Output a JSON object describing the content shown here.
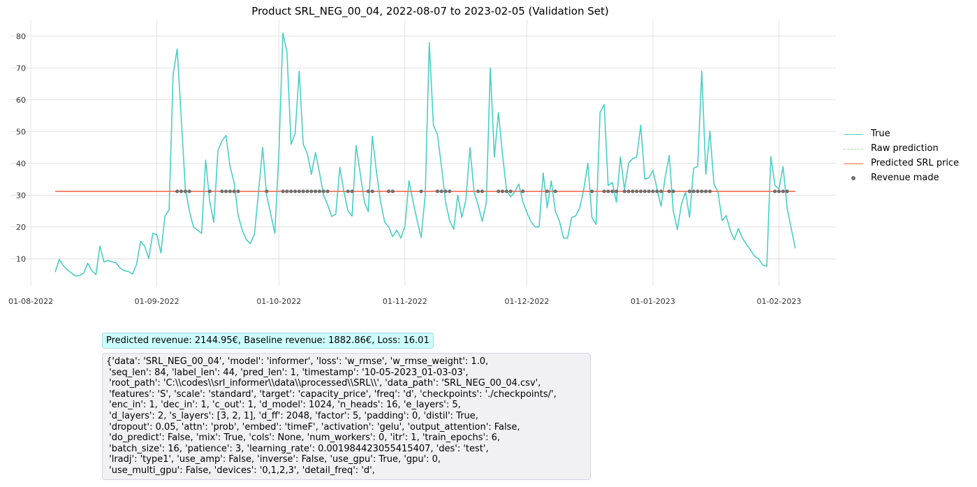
{
  "colors": {
    "true": "#48cfc4",
    "raw": "#9edc9a",
    "pred": "#f06a4f",
    "revenue": "#707070",
    "grid": "#dcdcdc"
  },
  "chart_data": {
    "type": "line",
    "title": "Product SRL_NEG_00_04, 2022-08-07 to 2023-02-05 (Validation Set)",
    "xlabel": "",
    "ylabel": "",
    "x_range": [
      "2022-07-27",
      "2023-02-15"
    ],
    "ylim": [
      1.5,
      85
    ],
    "yticks": [
      10,
      20,
      30,
      40,
      50,
      60,
      70,
      80
    ],
    "xticks": [
      {
        "date": "2022-08-01",
        "label": "01-08-2022"
      },
      {
        "date": "2022-09-01",
        "label": "01-09-2022"
      },
      {
        "date": "2022-10-01",
        "label": "01-10-2022"
      },
      {
        "date": "2022-11-01",
        "label": "01-11-2022"
      },
      {
        "date": "2022-12-01",
        "label": "01-12-2022"
      },
      {
        "date": "2023-01-01",
        "label": "01-01-2023"
      },
      {
        "date": "2023-02-01",
        "label": "01-02-2023"
      }
    ],
    "grid": true,
    "legend_position": "center-right",
    "series": [
      {
        "name": "True",
        "style": "line",
        "x_start": "2022-08-07",
        "x_step_days": 1,
        "values": [
          5.8,
          9.8,
          7.8,
          6.5,
          5.5,
          4.6,
          4.7,
          5.5,
          8.6,
          6.2,
          5,
          14,
          9,
          9.5,
          9,
          8.7,
          7,
          6.2,
          6,
          5.2,
          8.2,
          15.5,
          14,
          10,
          18,
          17.6,
          11.8,
          23.5,
          25.3,
          68,
          76,
          54,
          32,
          25,
          20,
          19,
          18,
          41,
          28,
          21.5,
          44,
          47,
          48.8,
          39,
          34,
          23.5,
          19,
          16,
          14.8,
          17.8,
          31,
          45,
          30,
          24,
          18,
          43,
          81,
          75,
          46,
          49.5,
          69,
          46,
          43,
          36.5,
          43.4,
          37,
          30,
          27,
          23.3,
          24,
          38.8,
          31,
          25,
          23.4,
          45.6,
          37,
          28,
          24.8,
          48.5,
          37.5,
          28,
          21.6,
          20,
          17,
          19,
          16.5,
          20.2,
          34.5,
          28,
          22,
          16.7,
          30,
          78,
          52,
          49,
          39,
          28,
          22,
          19.3,
          30,
          23,
          28.5,
          45,
          31,
          27,
          21.8,
          27.5,
          70,
          42,
          56,
          43,
          31.5,
          29.5,
          31,
          33.5,
          28,
          24.5,
          21.7,
          20,
          20,
          37,
          26,
          34.5,
          25,
          21.8,
          16.5,
          16.5,
          23,
          23.5,
          26,
          32,
          40,
          23,
          20.8,
          56,
          58.5,
          33,
          34,
          27.8,
          42,
          31.8,
          40,
          41.5,
          42,
          52,
          35,
          35.5,
          37.8,
          32,
          26.5,
          35.5,
          42.5,
          25,
          19.2,
          27,
          31,
          23,
          38.5,
          39,
          69,
          36.5,
          50.2,
          33.5,
          31,
          22,
          23.6,
          19,
          16,
          19.5,
          16.5,
          14.5,
          12.8,
          10.8,
          10,
          8,
          7.6,
          42.2,
          33,
          32,
          39,
          26,
          19.5,
          13.3
        ]
      },
      {
        "name": "Raw prediction",
        "style": "dashed",
        "values": []
      },
      {
        "name": "Predicted SRL price",
        "style": "line",
        "x_range": [
          "2022-08-07",
          "2023-02-05"
        ],
        "values": [
          31.2,
          31.2
        ]
      },
      {
        "name": "Revenue made",
        "style": "points",
        "y": 31.2,
        "x_indices": [
          30,
          31,
          32,
          33,
          38,
          41,
          42,
          43,
          44,
          45,
          52,
          56,
          57,
          58,
          59,
          60,
          61,
          62,
          63,
          64,
          65,
          66,
          67,
          72,
          73,
          77,
          78,
          82,
          83,
          90,
          94,
          95,
          96,
          97,
          104,
          105,
          109,
          110,
          111,
          112,
          115,
          121,
          123,
          132,
          135,
          136,
          137,
          138,
          140,
          141,
          142,
          143,
          144,
          145,
          146,
          147,
          148,
          149,
          151,
          152,
          156,
          157,
          158,
          159,
          160,
          161,
          177,
          178,
          179,
          180
        ]
      }
    ]
  },
  "revenue_text": "Predicted revenue: 2144.95€, Baseline revenue: 1882.86€, Loss: 16.01",
  "config_text": "{'data': 'SRL_NEG_00_04', 'model': 'informer', 'loss': 'w_rmse', 'w_rmse_weight': 1.0,\n 'seq_len': 84, 'label_len': 44, 'pred_len': 1, 'timestamp': '10-05-2023_01-03-03',\n 'root_path': 'C:\\\\codes\\\\srl_informer\\\\data\\\\processed\\\\SRL\\\\', 'data_path': 'SRL_NEG_00_04.csv',\n 'features': 'S', 'scale': 'standard', 'target': 'capacity_price', 'freq': 'd', 'checkpoints': './checkpoints/',\n 'enc_in': 1, 'dec_in': 1, 'c_out': 1, 'd_model': 1024, 'n_heads': 16, 'e_layers': 5,\n 'd_layers': 2, 's_layers': [3, 2, 1], 'd_ff': 2048, 'factor': 5, 'padding': 0, 'distil': True,\n 'dropout': 0.05, 'attn': 'prob', 'embed': 'timeF', 'activation': 'gelu', 'output_attention': False,\n 'do_predict': False, 'mix': True, 'cols': None, 'num_workers': 0, 'itr': 1, 'train_epochs': 6,\n 'batch_size': 16, 'patience': 3, 'learning_rate': 0.001984423055415407, 'des': 'test',\n 'lradj': 'type1', 'use_amp': False, 'inverse': False, 'use_gpu': True, 'gpu': 0,\n 'use_multi_gpu': False, 'devices': '0,1,2,3', 'detail_freq': 'd',"
}
